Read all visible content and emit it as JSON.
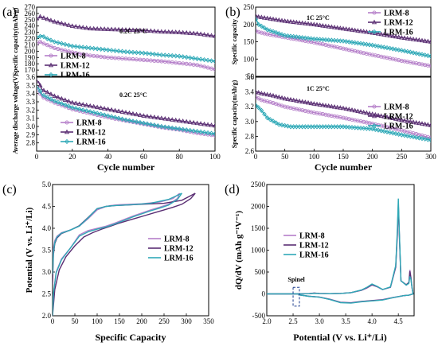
{
  "panels": {
    "a": {
      "label": "(a)"
    },
    "b": {
      "label": "(b)"
    },
    "c": {
      "label": "(c)"
    },
    "d": {
      "label": "(d)"
    }
  },
  "colors": {
    "LRM-8": "#b57fc9",
    "LRM-12": "#5a2e73",
    "LRM-16": "#2fa9b7"
  },
  "chart_data": [
    {
      "id": "a-top",
      "type": "line",
      "annotation": "0.2C  25°C",
      "ylabel": "Specific capacity(mAh/g)",
      "xlim": [
        0,
        100
      ],
      "ylim": [
        160,
        270
      ],
      "yticks": [
        170,
        180,
        190,
        200,
        210,
        220,
        230,
        240,
        250,
        260,
        270
      ],
      "series": [
        {
          "name": "LRM-8",
          "marker": "circle",
          "x": [
            1,
            2,
            4,
            10,
            20,
            30,
            40,
            50,
            60,
            70,
            80,
            90,
            100
          ],
          "y": [
            212,
            215,
            212,
            205,
            198,
            193,
            190,
            188,
            186,
            184,
            181,
            178,
            171
          ]
        },
        {
          "name": "LRM-12",
          "marker": "triangle",
          "x": [
            1,
            2,
            5,
            10,
            20,
            30,
            40,
            50,
            60,
            70,
            80,
            90,
            100
          ],
          "y": [
            252,
            255,
            252,
            247,
            240,
            236,
            235,
            234,
            233,
            231,
            230,
            228,
            224
          ]
        },
        {
          "name": "LRM-16",
          "marker": "diamond",
          "x": [
            1,
            3,
            5,
            10,
            20,
            30,
            40,
            50,
            60,
            70,
            80,
            90,
            100
          ],
          "y": [
            222,
            225,
            221,
            215,
            208,
            205,
            202,
            199,
            197,
            194,
            192,
            188,
            184
          ]
        }
      ]
    },
    {
      "id": "a-bottom",
      "type": "line",
      "annotation": "0.2C  25°C",
      "ylabel": "Average discharge voltage(V)",
      "xlabel": "Cycle number",
      "xlim": [
        0,
        100
      ],
      "ylim": [
        2.7,
        3.6
      ],
      "xticks": [
        0,
        20,
        40,
        60,
        80,
        100
      ],
      "yticks": [
        2.8,
        2.9,
        3.0,
        3.1,
        3.2,
        3.3,
        3.4,
        3.5,
        3.6
      ],
      "series": [
        {
          "name": "LRM-8",
          "marker": "circle",
          "x": [
            1,
            3,
            10,
            20,
            30,
            40,
            50,
            60,
            70,
            80,
            90,
            100
          ],
          "y": [
            3.44,
            3.36,
            3.29,
            3.21,
            3.16,
            3.11,
            3.07,
            3.03,
            2.99,
            2.96,
            2.92,
            2.89
          ]
        },
        {
          "name": "LRM-12",
          "marker": "triangle",
          "x": [
            1,
            3,
            10,
            20,
            30,
            40,
            50,
            60,
            70,
            80,
            90,
            100
          ],
          "y": [
            3.55,
            3.45,
            3.37,
            3.29,
            3.25,
            3.21,
            3.17,
            3.13,
            3.1,
            3.07,
            3.04,
            3.01
          ]
        },
        {
          "name": "LRM-16",
          "marker": "diamond",
          "x": [
            1,
            3,
            10,
            20,
            30,
            40,
            50,
            60,
            70,
            80,
            90,
            100
          ],
          "y": [
            3.47,
            3.39,
            3.31,
            3.23,
            3.18,
            3.13,
            3.08,
            3.04,
            3.0,
            2.97,
            2.94,
            2.91
          ]
        }
      ]
    },
    {
      "id": "b-top",
      "type": "line",
      "annotation": "1C  25°C",
      "ylabel": "Specific capacity",
      "xlim": [
        0,
        300
      ],
      "ylim": [
        50,
        250
      ],
      "yticks": [
        50,
        100,
        150,
        200,
        250
      ],
      "series": [
        {
          "name": "LRM-8",
          "marker": "circle",
          "x": [
            1,
            5,
            20,
            50,
            100,
            150,
            200,
            250,
            300
          ],
          "y": [
            182,
            178,
            172,
            163,
            148,
            130,
            112,
            95,
            80
          ]
        },
        {
          "name": "LRM-12",
          "marker": "triangle",
          "x": [
            1,
            5,
            20,
            50,
            100,
            150,
            200,
            250,
            300
          ],
          "y": [
            225,
            222,
            218,
            210,
            200,
            188,
            176,
            162,
            150
          ]
        },
        {
          "name": "LRM-16",
          "marker": "diamond",
          "x": [
            1,
            5,
            20,
            50,
            100,
            150,
            200,
            250,
            300
          ],
          "y": [
            215,
            200,
            185,
            168,
            158,
            152,
            140,
            125,
            108
          ]
        }
      ]
    },
    {
      "id": "b-bottom",
      "type": "line",
      "annotation": "1C  25°C",
      "ylabel": "Specific capacity(mAh/g)",
      "xlabel": "Cycle number",
      "xlim": [
        0,
        300
      ],
      "ylim": [
        2.6,
        3.6
      ],
      "xticks": [
        0,
        50,
        100,
        150,
        200,
        250,
        300
      ],
      "yticks": [
        2.6,
        2.8,
        3.0,
        3.2,
        3.4,
        3.6
      ],
      "series": [
        {
          "name": "LRM-8",
          "marker": "circle",
          "x": [
            1,
            10,
            30,
            50,
            100,
            150,
            200,
            250,
            300
          ],
          "y": [
            3.33,
            3.29,
            3.25,
            3.2,
            3.12,
            3.05,
            2.97,
            2.88,
            2.78
          ]
        },
        {
          "name": "LRM-12",
          "marker": "triangle",
          "x": [
            1,
            10,
            30,
            50,
            100,
            150,
            200,
            250,
            300
          ],
          "y": [
            3.4,
            3.38,
            3.35,
            3.31,
            3.24,
            3.18,
            3.1,
            3.02,
            2.95
          ]
        },
        {
          "name": "LRM-16",
          "marker": "diamond",
          "x": [
            1,
            10,
            20,
            40,
            60,
            100,
            150,
            200,
            250,
            300
          ],
          "y": [
            3.22,
            3.15,
            3.05,
            2.96,
            2.93,
            2.93,
            2.93,
            2.9,
            2.82,
            2.75
          ]
        }
      ]
    },
    {
      "id": "c",
      "type": "line",
      "xlabel": "Specific Capacity",
      "ylabel": "Potential (V vs. Li⁺/Li)",
      "xlim": [
        0,
        350
      ],
      "ylim": [
        2.0,
        5.0
      ],
      "xticks": [
        0,
        50,
        100,
        150,
        200,
        250,
        300,
        350
      ],
      "yticks": [
        2.0,
        2.5,
        3.0,
        3.5,
        4.0,
        4.5,
        5.0
      ],
      "series": [
        {
          "name": "LRM-8",
          "segments": [
            {
              "x": [
                0,
                2,
                5,
                10,
                20,
                40,
                60,
                80,
                100,
                120,
                130,
                150,
                200,
                240,
                270,
                285
              ],
              "y": [
                3.2,
                3.55,
                3.72,
                3.82,
                3.9,
                3.96,
                4.05,
                4.22,
                4.42,
                4.5,
                4.52,
                4.54,
                4.56,
                4.6,
                4.68,
                4.8
              ]
            },
            {
              "x": [
                285,
                280,
                260,
                240,
                220,
                200,
                180,
                160,
                140,
                120,
                100,
                80,
                60,
                40,
                20,
                8,
                2,
                0
              ],
              "y": [
                4.8,
                4.68,
                4.55,
                4.48,
                4.42,
                4.35,
                4.28,
                4.2,
                4.12,
                4.05,
                4.0,
                3.95,
                3.85,
                3.55,
                3.3,
                3.0,
                2.5,
                2.0
              ]
            }
          ]
        },
        {
          "name": "LRM-12",
          "segments": [
            {
              "x": [
                0,
                2,
                5,
                10,
                20,
                40,
                60,
                80,
                100,
                120,
                140,
                160,
                200,
                250,
                290,
                320
              ],
              "y": [
                2.72,
                3.4,
                3.65,
                3.78,
                3.88,
                3.96,
                4.06,
                4.25,
                4.45,
                4.5,
                4.52,
                4.53,
                4.55,
                4.57,
                4.64,
                4.8
              ]
            },
            {
              "x": [
                320,
                310,
                290,
                270,
                250,
                230,
                210,
                190,
                170,
                150,
                130,
                110,
                90,
                70,
                50,
                30,
                15,
                5,
                0
              ],
              "y": [
                4.8,
                4.68,
                4.55,
                4.48,
                4.42,
                4.36,
                4.3,
                4.24,
                4.18,
                4.12,
                4.05,
                3.98,
                3.9,
                3.8,
                3.6,
                3.35,
                3.05,
                2.6,
                2.0
              ]
            }
          ]
        },
        {
          "name": "LRM-16",
          "segments": [
            {
              "x": [
                0,
                2,
                5,
                10,
                20,
                40,
                60,
                80,
                100,
                120,
                140,
                180,
                220,
                260,
                290
              ],
              "y": [
                2.95,
                3.45,
                3.68,
                3.8,
                3.89,
                3.96,
                4.05,
                4.24,
                4.45,
                4.5,
                4.52,
                4.54,
                4.57,
                4.66,
                4.8
              ]
            },
            {
              "x": [
                290,
                280,
                260,
                240,
                220,
                200,
                180,
                160,
                140,
                120,
                100,
                80,
                60,
                40,
                20,
                8,
                2,
                0
              ],
              "y": [
                4.8,
                4.66,
                4.53,
                4.46,
                4.4,
                4.33,
                4.26,
                4.18,
                4.1,
                4.03,
                3.98,
                3.92,
                3.82,
                3.55,
                3.28,
                2.98,
                2.5,
                2.0
              ]
            }
          ]
        }
      ]
    },
    {
      "id": "d",
      "type": "line",
      "xlabel": "Potential (V vs. Li⁺/Li)",
      "ylabel": "dQ/dV (mAh g⁻¹V⁻¹)",
      "annotation": "Spinel",
      "xlim": [
        2.0,
        4.8
      ],
      "ylim": [
        -500,
        2500
      ],
      "xticks": [
        2.0,
        2.5,
        3.0,
        3.5,
        4.0,
        4.5
      ],
      "yticks": [
        -500,
        0,
        500,
        1000,
        1500,
        2000,
        2500
      ],
      "series": [
        {
          "name": "LRM-8",
          "x": [
            2.0,
            2.6,
            2.8,
            2.9,
            3.0,
            3.2,
            3.4,
            3.6,
            3.8,
            3.9,
            4.0,
            4.1,
            4.2,
            4.35,
            4.45,
            4.48,
            4.5,
            4.52,
            4.55,
            4.65,
            4.7,
            4.72,
            4.74,
            4.76,
            4.78,
            4.7,
            4.6,
            4.4,
            4.2,
            4.0,
            3.8,
            3.6,
            3.4,
            3.2,
            3.0,
            2.8,
            2.6
          ],
          "y": [
            0,
            0,
            5,
            20,
            10,
            5,
            10,
            30,
            80,
            130,
            200,
            160,
            100,
            150,
            600,
            1300,
            1950,
            1300,
            300,
            200,
            250,
            550,
            380,
            150,
            0,
            -30,
            -40,
            -80,
            -130,
            -150,
            -170,
            -200,
            -190,
            -120,
            -70,
            -50,
            -20
          ]
        },
        {
          "name": "LRM-12",
          "x": [
            2.0,
            2.6,
            2.8,
            2.9,
            3.0,
            3.2,
            3.4,
            3.6,
            3.8,
            3.9,
            4.0,
            4.1,
            4.2,
            4.35,
            4.45,
            4.48,
            4.5,
            4.52,
            4.55,
            4.65,
            4.7,
            4.72,
            4.74,
            4.76,
            4.78,
            4.7,
            4.6,
            4.4,
            4.2,
            4.0,
            3.8,
            3.6,
            3.4,
            3.2,
            3.0,
            2.8,
            2.6
          ],
          "y": [
            0,
            0,
            5,
            18,
            10,
            5,
            10,
            30,
            85,
            140,
            210,
            165,
            100,
            155,
            620,
            1350,
            2050,
            1350,
            300,
            210,
            260,
            520,
            360,
            140,
            0,
            -30,
            -40,
            -85,
            -135,
            -155,
            -175,
            -205,
            -195,
            -125,
            -75,
            -55,
            -20
          ]
        },
        {
          "name": "LRM-16",
          "x": [
            2.0,
            2.6,
            2.8,
            2.9,
            3.0,
            3.2,
            3.4,
            3.6,
            3.8,
            3.9,
            4.0,
            4.1,
            4.2,
            4.35,
            4.45,
            4.48,
            4.5,
            4.52,
            4.55,
            4.65,
            4.7,
            4.72,
            4.74,
            4.76,
            4.78,
            4.7,
            4.6,
            4.4,
            4.2,
            4.0,
            3.8,
            3.6,
            3.4,
            3.2,
            3.0,
            2.8,
            2.6
          ],
          "y": [
            0,
            0,
            4,
            12,
            8,
            5,
            10,
            30,
            90,
            150,
            225,
            170,
            100,
            160,
            650,
            1450,
            2180,
            1400,
            300,
            200,
            240,
            400,
            330,
            140,
            0,
            -30,
            -40,
            -85,
            -140,
            -160,
            -180,
            -210,
            -200,
            -130,
            -75,
            -55,
            -20
          ]
        }
      ]
    }
  ]
}
